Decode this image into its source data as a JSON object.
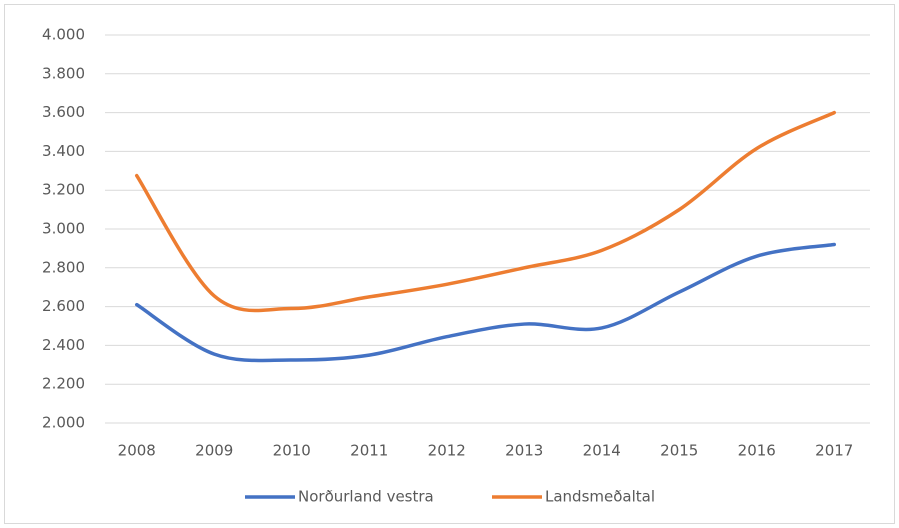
{
  "chart_data": {
    "type": "line",
    "categories": [
      "2008",
      "2009",
      "2010",
      "2011",
      "2012",
      "2013",
      "2014",
      "2015",
      "2016",
      "2017"
    ],
    "series": [
      {
        "name": "Norðurland vestra",
        "color": "#4472c4",
        "values": [
          2610,
          2355,
          2325,
          2350,
          2445,
          2510,
          2490,
          2675,
          2860,
          2920
        ]
      },
      {
        "name": "Landsmeðaltal",
        "color": "#ed7d31",
        "values": [
          3275,
          2655,
          2590,
          2650,
          2715,
          2800,
          2890,
          3100,
          3415,
          3600
        ]
      }
    ],
    "ylim": [
      2000,
      4000
    ],
    "yticks": [
      {
        "value": 2000,
        "label": "2.000"
      },
      {
        "value": 2200,
        "label": "2.200"
      },
      {
        "value": 2400,
        "label": "2.400"
      },
      {
        "value": 2600,
        "label": "2.600"
      },
      {
        "value": 2800,
        "label": "2.800"
      },
      {
        "value": 3000,
        "label": "3.000"
      },
      {
        "value": 3200,
        "label": "3.200"
      },
      {
        "value": 3400,
        "label": "3.400"
      },
      {
        "value": 3600,
        "label": "3.600"
      },
      {
        "value": 3800,
        "label": "3.800"
      },
      {
        "value": 4000,
        "label": "4.000"
      }
    ],
    "grid": true,
    "legend": "bottom"
  }
}
